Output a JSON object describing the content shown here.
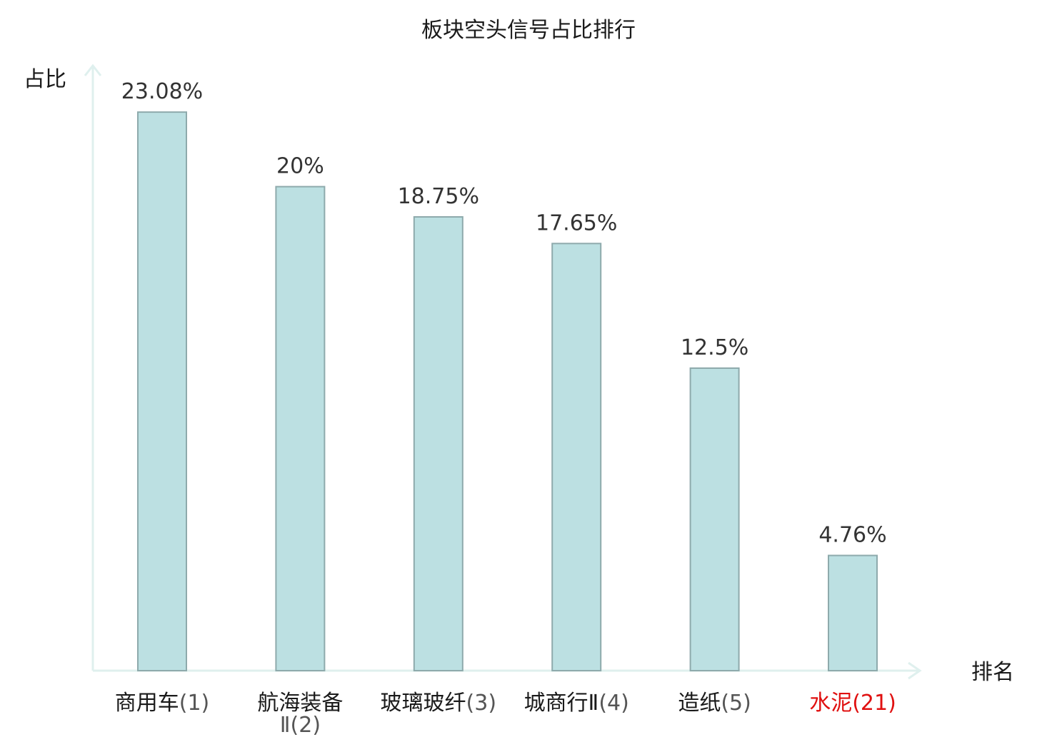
{
  "chart_data": {
    "type": "bar",
    "title": "板块空头信号占比排行",
    "ylabel": "占比",
    "xlabel": "排名",
    "ylim": [
      0,
      25
    ],
    "grid": false,
    "legend": "none",
    "colors": {
      "bar_fill": "#bce0e2",
      "bar_stroke": "#8eaaac",
      "axis": "#dff0ee",
      "highlight": "#e01010"
    },
    "categories": [
      {
        "name": "商用车",
        "rank": "(1)",
        "value": 23.08,
        "value_label": "23.08%",
        "highlight": false
      },
      {
        "name": "航海装备",
        "name2": "Ⅱ",
        "rank": "(2)",
        "value": 20,
        "value_label": "20%",
        "highlight": false
      },
      {
        "name": "玻璃玻纤",
        "rank": "(3)",
        "value": 18.75,
        "value_label": "18.75%",
        "highlight": false
      },
      {
        "name": "城商行Ⅱ",
        "rank": "(4)",
        "value": 17.65,
        "value_label": "17.65%",
        "highlight": false
      },
      {
        "name": "造纸",
        "rank": "(5)",
        "value": 12.5,
        "value_label": "12.5%",
        "highlight": false
      },
      {
        "name": "水泥",
        "rank": "(21)",
        "value": 4.76,
        "value_label": "4.76%",
        "highlight": true
      }
    ]
  }
}
